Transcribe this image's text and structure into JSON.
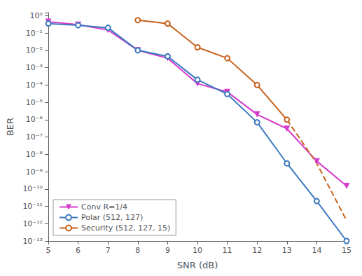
{
  "chart_data": {
    "type": "line",
    "xlabel": "SNR (dB)",
    "ylabel": "BER",
    "log": "y",
    "grid": false,
    "legend": "lower left",
    "xlim": [
      5,
      15
    ],
    "xticks": [
      5,
      6,
      7,
      8,
      9,
      10,
      11,
      12,
      13,
      14,
      15
    ],
    "ylim": [
      1e-13,
      1.5
    ],
    "yticks": [
      {
        "value": 1e-13,
        "label": "10⁻¹³"
      },
      {
        "value": 1e-12,
        "label": "10⁻¹²"
      },
      {
        "value": 1e-11,
        "label": "10⁻¹¹"
      },
      {
        "value": 1e-10,
        "label": "10⁻¹⁰"
      },
      {
        "value": 1e-09,
        "label": "10⁻⁹"
      },
      {
        "value": 1e-08,
        "label": "10⁻⁸"
      },
      {
        "value": 1e-07,
        "label": "10⁻⁷"
      },
      {
        "value": 1e-06,
        "label": "10⁻⁶"
      },
      {
        "value": 1e-05,
        "label": "10⁻⁵"
      },
      {
        "value": 0.0001,
        "label": "10⁻⁴"
      },
      {
        "value": 0.001,
        "label": "10⁻³"
      },
      {
        "value": 0.01,
        "label": "10⁻²"
      },
      {
        "value": 0.1,
        "label": "10⁻¹"
      },
      {
        "value": 1,
        "label": "10⁰"
      }
    ],
    "series": [
      {
        "name": "Conv R=1/4",
        "color": "#d63bcc",
        "marker": "triangle-down",
        "line_style": "solid",
        "x": [
          5,
          6,
          7,
          8,
          9,
          10,
          11,
          12,
          13,
          14,
          15
        ],
        "values": [
          0.45,
          0.3,
          0.15,
          0.01,
          0.0035,
          0.00012,
          4e-05,
          2e-06,
          3e-07,
          4e-09,
          1.5e-10
        ]
      },
      {
        "name": "Polar (512, 127)",
        "color": "#3d7abf",
        "marker": "circle-open",
        "line_style": "solid",
        "x": [
          5,
          6,
          7,
          8,
          9,
          10,
          11,
          12,
          13,
          14,
          15
        ],
        "values": [
          0.35,
          0.28,
          0.2,
          0.01,
          0.0045,
          0.0002,
          3e-05,
          7e-07,
          3e-09,
          2e-11,
          1e-13
        ]
      },
      {
        "name": "Security (512, 127, 15)",
        "color": "#c8621e",
        "marker": "circle-open",
        "line_style": "solid",
        "x": [
          8,
          9,
          10,
          11,
          12,
          13
        ],
        "values": [
          0.55,
          0.35,
          0.015,
          0.0035,
          0.0001,
          1e-06
        ]
      },
      {
        "color": "#c8621e",
        "marker": "none",
        "line_style": "dashed",
        "x": [
          13,
          14,
          15
        ],
        "values": [
          1e-06,
          3e-09,
          1.5e-12
        ]
      }
    ]
  }
}
